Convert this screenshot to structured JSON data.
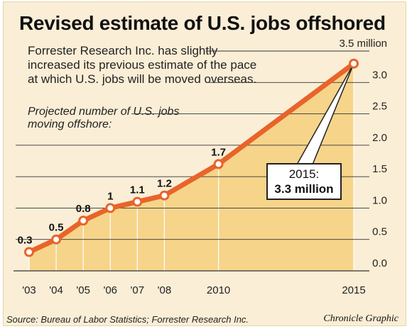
{
  "header": {
    "title": "Revised estimate of U.S. jobs offshored",
    "subtitle": "Forrester Research Inc. has slightly increased its previous estimate of the pace at which U.S. jobs will be moved overseas."
  },
  "chart_data": {
    "type": "area",
    "title": "Projected number of U.S. jobs moving offshore:",
    "x": [
      2003,
      2004,
      2005,
      2006,
      2007,
      2008,
      2010,
      2015
    ],
    "x_tick_labels": [
      "'03",
      "'04",
      "'05",
      "'06",
      "'07",
      "'08",
      "2010",
      "2015"
    ],
    "values": [
      0.3,
      0.5,
      0.8,
      1.0,
      1.1,
      1.2,
      1.7,
      3.3
    ],
    "data_labels": [
      "0.3",
      "0.5",
      "0.8",
      "1",
      "1.1",
      "1.2",
      "1.7",
      ""
    ],
    "y_ticks": [
      0.0,
      0.5,
      1.0,
      1.5,
      2.0,
      2.5,
      3.0,
      3.5
    ],
    "y_tick_labels": [
      "0.0",
      "0.5",
      "1.0",
      "1.5",
      "2.0",
      "2.5",
      "3.0",
      "3.5 million"
    ],
    "ylim": [
      0,
      3.5
    ],
    "xlim": [
      2003,
      2015
    ],
    "grid": true,
    "annotation": {
      "year": "2015:",
      "value": "3.3 million"
    },
    "colors": {
      "line": "#e8642a",
      "fill": "#f6d48a",
      "point_fill": "#ffffff",
      "grid": "#333333",
      "background": "#fbeed6"
    }
  },
  "footer": {
    "source": "Source: Bureau of Labor Statistics; Forrester Research Inc.",
    "credit": "Chronicle Graphic"
  }
}
